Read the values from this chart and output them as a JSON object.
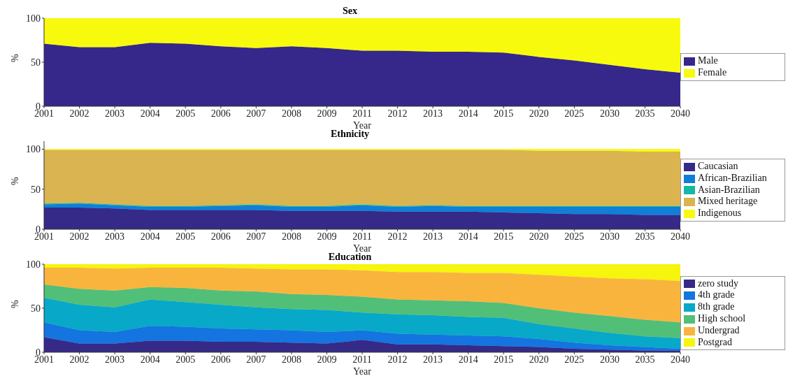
{
  "chart_data": [
    {
      "type": "area",
      "stacked": true,
      "title": "Sex",
      "xlabel": "Year",
      "ylabel": "%",
      "legend": "right",
      "ylim": [
        0,
        100
      ],
      "yticks": [
        0,
        50,
        100
      ],
      "categories": [
        "2001",
        "2002",
        "2003",
        "2004",
        "2005",
        "2006",
        "2007",
        "2008",
        "2009",
        "2011",
        "2012",
        "2013",
        "2014",
        "2015",
        "2020",
        "2025",
        "2030",
        "2035",
        "2040"
      ],
      "series": [
        {
          "name": "Male",
          "color": "#35288a",
          "values": [
            71,
            67,
            67,
            72,
            71,
            68,
            66,
            68,
            66,
            63,
            63,
            62,
            62,
            61,
            56,
            52,
            47,
            42,
            38
          ]
        },
        {
          "name": "Female",
          "color": "#f8fa0d",
          "values": [
            29,
            33,
            33,
            28,
            29,
            32,
            34,
            32,
            34,
            37,
            37,
            38,
            38,
            39,
            44,
            48,
            53,
            58,
            62
          ]
        }
      ]
    },
    {
      "type": "area",
      "stacked": true,
      "title": "Ethnicity",
      "xlabel": "Year",
      "ylabel": "%",
      "legend": "right",
      "ylim": [
        0,
        110
      ],
      "yticks": [
        0,
        50,
        100
      ],
      "categories": [
        "2001",
        "2002",
        "2003",
        "2004",
        "2005",
        "2006",
        "2007",
        "2008",
        "2009",
        "2011",
        "2012",
        "2013",
        "2014",
        "2015",
        "2020",
        "2025",
        "2030",
        "2035",
        "2040"
      ],
      "series": [
        {
          "name": "Caucasian",
          "color": "#352a87",
          "values": [
            27,
            27,
            26,
            24,
            24,
            24,
            24,
            23,
            23,
            23,
            22,
            22,
            22,
            21,
            20,
            19,
            19,
            18,
            18
          ]
        },
        {
          "name": "African-Brazilian",
          "color": "#0f7fd8",
          "values": [
            4,
            5,
            4,
            4,
            4,
            5,
            6,
            5,
            5,
            7,
            6,
            7,
            6,
            7,
            8,
            9,
            9,
            10,
            10
          ]
        },
        {
          "name": "Asian-Brazilian",
          "color": "#13b8a6",
          "values": [
            1,
            1,
            1,
            1,
            1,
            1,
            1,
            1,
            1,
            1,
            1,
            1,
            1,
            1,
            1,
            1,
            1,
            1,
            1
          ]
        },
        {
          "name": "Mixed heritage",
          "color": "#d9b450",
          "values": [
            67,
            66,
            68,
            70,
            70,
            69,
            68,
            70,
            70,
            68,
            70,
            69,
            70,
            70,
            69,
            69,
            69,
            68,
            68
          ]
        },
        {
          "name": "Indigenous",
          "color": "#f8fa0d",
          "values": [
            1,
            1,
            1,
            1,
            1,
            1,
            1,
            1,
            1,
            1,
            1,
            1,
            1,
            1,
            2,
            2,
            2,
            3,
            3
          ]
        }
      ]
    },
    {
      "type": "area",
      "stacked": true,
      "title": "Education",
      "xlabel": "Year",
      "ylabel": "%",
      "legend": "right",
      "ylim": [
        0,
        100
      ],
      "yticks": [
        0,
        50,
        100
      ],
      "categories": [
        "2001",
        "2002",
        "2003",
        "2004",
        "2005",
        "2006",
        "2007",
        "2008",
        "2009",
        "2011",
        "2012",
        "2013",
        "2014",
        "2015",
        "2020",
        "2025",
        "2030",
        "2035",
        "2040"
      ],
      "series": [
        {
          "name": "zero study",
          "color": "#352a87",
          "values": [
            17,
            10,
            10,
            13,
            13,
            12,
            12,
            11,
            10,
            14,
            9,
            9,
            8,
            7,
            6,
            4,
            3,
            2,
            2
          ]
        },
        {
          "name": "4th grade",
          "color": "#1474e0",
          "values": [
            17,
            15,
            13,
            17,
            16,
            15,
            14,
            14,
            13,
            11,
            12,
            11,
            11,
            11,
            9,
            7,
            5,
            4,
            2
          ]
        },
        {
          "name": "8th grade",
          "color": "#08a8c8",
          "values": [
            28,
            29,
            28,
            30,
            28,
            27,
            25,
            24,
            25,
            20,
            22,
            22,
            21,
            21,
            17,
            16,
            14,
            12,
            12
          ]
        },
        {
          "name": "High school",
          "color": "#52bf78",
          "values": [
            15,
            18,
            19,
            14,
            16,
            16,
            18,
            17,
            17,
            18,
            17,
            17,
            18,
            17,
            18,
            18,
            19,
            19,
            18
          ]
        },
        {
          "name": "Undergrad",
          "color": "#f9b43e",
          "values": [
            19,
            24,
            25,
            22,
            23,
            26,
            26,
            28,
            29,
            30,
            31,
            32,
            32,
            34,
            38,
            41,
            43,
            46,
            47
          ]
        },
        {
          "name": "Postgrad",
          "color": "#f5f50e",
          "values": [
            4,
            4,
            5,
            4,
            4,
            4,
            5,
            6,
            6,
            7,
            9,
            9,
            10,
            10,
            12,
            14,
            16,
            17,
            19
          ]
        }
      ]
    }
  ]
}
